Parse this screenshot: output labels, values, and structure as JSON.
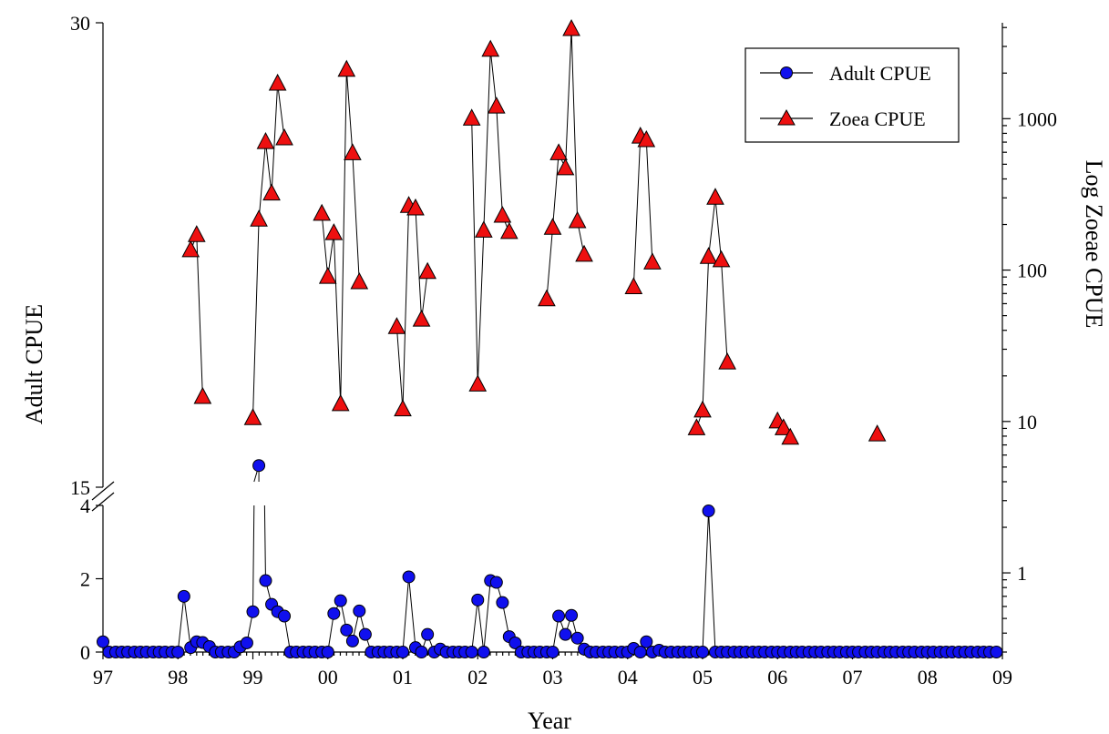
{
  "chart_data": {
    "type": "scatter",
    "xlabel": "Year",
    "ylabel_left": "Adult CPUE",
    "ylabel_right": "Log Zoeae CPUE",
    "x_ticks": [
      "97",
      "98",
      "99",
      "00",
      "01",
      "02",
      "03",
      "04",
      "05",
      "06",
      "07",
      "08",
      "09"
    ],
    "x_range": [
      1997,
      2009
    ],
    "y_left_lower_ticks": [
      "0",
      "2",
      "4"
    ],
    "y_left_upper_ticks": [
      "15",
      "30"
    ],
    "y_left_lower_range": [
      0,
      4
    ],
    "y_left_upper_range": [
      15,
      30
    ],
    "y_right_ticks": [
      "1",
      "10",
      "100",
      "1000"
    ],
    "y_right_range_log": [
      0.3,
      4300
    ],
    "grid": false,
    "legend_position": "top-right",
    "series": [
      {
        "name": "Adult CPUE",
        "marker": "circle",
        "color": "#1010ee",
        "axis": "left",
        "points": [
          [
            1997.0,
            0.28
          ],
          [
            1997.08,
            0
          ],
          [
            1997.17,
            0
          ],
          [
            1997.25,
            0
          ],
          [
            1997.33,
            0
          ],
          [
            1997.42,
            0
          ],
          [
            1997.5,
            0
          ],
          [
            1997.58,
            0
          ],
          [
            1997.67,
            0
          ],
          [
            1997.75,
            0
          ],
          [
            1997.83,
            0
          ],
          [
            1997.92,
            0
          ],
          [
            1998.0,
            0
          ],
          [
            1998.08,
            1.52
          ],
          [
            1998.17,
            0.12
          ],
          [
            1998.25,
            0.28
          ],
          [
            1998.33,
            0.26
          ],
          [
            1998.42,
            0.15
          ],
          [
            1998.5,
            0
          ],
          [
            1998.58,
            0
          ],
          [
            1998.67,
            0
          ],
          [
            1998.75,
            0
          ],
          [
            1998.83,
            0.14
          ],
          [
            1998.92,
            0.25
          ],
          [
            1999.0,
            1.1
          ],
          [
            1999.08,
            15.7
          ],
          [
            1999.17,
            1.95
          ],
          [
            1999.25,
            1.3
          ],
          [
            1999.33,
            1.1
          ],
          [
            1999.42,
            0.98
          ],
          [
            1999.5,
            0
          ],
          [
            1999.58,
            0
          ],
          [
            1999.67,
            0
          ],
          [
            1999.75,
            0
          ],
          [
            1999.83,
            0
          ],
          [
            1999.92,
            0
          ],
          [
            2000.0,
            0
          ],
          [
            2000.08,
            1.05
          ],
          [
            2000.17,
            1.4
          ],
          [
            2000.25,
            0.6
          ],
          [
            2000.33,
            0.3
          ],
          [
            2000.42,
            1.12
          ],
          [
            2000.5,
            0.48
          ],
          [
            2000.58,
            0
          ],
          [
            2000.67,
            0
          ],
          [
            2000.75,
            0
          ],
          [
            2000.83,
            0
          ],
          [
            2000.92,
            0
          ],
          [
            2001.0,
            0
          ],
          [
            2001.08,
            2.05
          ],
          [
            2001.17,
            0.12
          ],
          [
            2001.25,
            0
          ],
          [
            2001.33,
            0.48
          ],
          [
            2001.42,
            0
          ],
          [
            2001.5,
            0.08
          ],
          [
            2001.58,
            0
          ],
          [
            2001.67,
            0
          ],
          [
            2001.75,
            0
          ],
          [
            2001.83,
            0
          ],
          [
            2001.92,
            0
          ],
          [
            2002.0,
            1.42
          ],
          [
            2002.08,
            0
          ],
          [
            2002.17,
            1.95
          ],
          [
            2002.25,
            1.9
          ],
          [
            2002.33,
            1.35
          ],
          [
            2002.42,
            0.42
          ],
          [
            2002.5,
            0.25
          ],
          [
            2002.58,
            0
          ],
          [
            2002.67,
            0
          ],
          [
            2002.75,
            0
          ],
          [
            2002.83,
            0
          ],
          [
            2002.92,
            0
          ],
          [
            2003.0,
            0
          ],
          [
            2003.08,
            0.98
          ],
          [
            2003.17,
            0.48
          ],
          [
            2003.25,
            1.0
          ],
          [
            2003.33,
            0.38
          ],
          [
            2003.42,
            0.08
          ],
          [
            2003.5,
            0
          ],
          [
            2003.58,
            0
          ],
          [
            2003.67,
            0
          ],
          [
            2003.75,
            0
          ],
          [
            2003.83,
            0
          ],
          [
            2003.92,
            0
          ],
          [
            2004.0,
            0
          ],
          [
            2004.08,
            0.1
          ],
          [
            2004.17,
            0
          ],
          [
            2004.25,
            0.28
          ],
          [
            2004.33,
            0
          ],
          [
            2004.42,
            0.05
          ],
          [
            2004.5,
            0
          ],
          [
            2004.58,
            0
          ],
          [
            2004.67,
            0
          ],
          [
            2004.75,
            0
          ],
          [
            2004.83,
            0
          ],
          [
            2004.92,
            0
          ],
          [
            2005.0,
            0
          ],
          [
            2005.08,
            3.85
          ],
          [
            2005.17,
            0
          ],
          [
            2005.25,
            0
          ],
          [
            2005.33,
            0
          ],
          [
            2005.42,
            0
          ],
          [
            2005.5,
            0
          ],
          [
            2005.58,
            0
          ],
          [
            2005.67,
            0
          ],
          [
            2005.75,
            0
          ],
          [
            2005.83,
            0
          ],
          [
            2005.92,
            0
          ],
          [
            2006.0,
            0
          ],
          [
            2006.08,
            0
          ],
          [
            2006.17,
            0
          ],
          [
            2006.25,
            0
          ],
          [
            2006.33,
            0
          ],
          [
            2006.42,
            0
          ],
          [
            2006.5,
            0
          ],
          [
            2006.58,
            0
          ],
          [
            2006.67,
            0
          ],
          [
            2006.75,
            0
          ],
          [
            2006.83,
            0
          ],
          [
            2006.92,
            0
          ],
          [
            2007.0,
            0
          ],
          [
            2007.08,
            0
          ],
          [
            2007.17,
            0
          ],
          [
            2007.25,
            0
          ],
          [
            2007.33,
            0
          ],
          [
            2007.42,
            0
          ],
          [
            2007.5,
            0
          ],
          [
            2007.58,
            0
          ],
          [
            2007.67,
            0
          ],
          [
            2007.75,
            0
          ],
          [
            2007.83,
            0
          ],
          [
            2007.92,
            0
          ],
          [
            2008.0,
            0
          ],
          [
            2008.08,
            0
          ],
          [
            2008.17,
            0
          ],
          [
            2008.25,
            0
          ],
          [
            2008.33,
            0
          ],
          [
            2008.42,
            0
          ],
          [
            2008.5,
            0
          ],
          [
            2008.58,
            0
          ],
          [
            2008.67,
            0
          ],
          [
            2008.75,
            0
          ],
          [
            2008.83,
            0
          ],
          [
            2008.92,
            0
          ]
        ]
      },
      {
        "name": "Zoea CPUE",
        "marker": "triangle",
        "color": "#ee1010",
        "axis": "right",
        "segments": [
          [
            [
              1998.17,
              135
            ],
            [
              1998.25,
              170
            ],
            [
              1998.33,
              14.5
            ]
          ],
          [
            [
              1999.0,
              10.5
            ],
            [
              1999.08,
              215
            ],
            [
              1999.17,
              700
            ],
            [
              1999.25,
              320
            ],
            [
              1999.33,
              1700
            ],
            [
              1999.42,
              740
            ]
          ],
          [
            [
              1999.92,
              235
            ],
            [
              2000.0,
              90
            ],
            [
              2000.08,
              175
            ],
            [
              2000.17,
              13
            ],
            [
              2000.25,
              2100
            ],
            [
              2000.33,
              590
            ],
            [
              2000.42,
              83
            ]
          ],
          [
            [
              2000.92,
              42
            ],
            [
              2001.0,
              12
            ],
            [
              2001.08,
              265
            ],
            [
              2001.17,
              255
            ],
            [
              2001.25,
              47
            ],
            [
              2001.33,
              97
            ]
          ],
          [
            [
              2001.92,
              1000
            ],
            [
              2002.0,
              17.5
            ],
            [
              2002.08,
              182
            ],
            [
              2002.17,
              2850
            ],
            [
              2002.25,
              1200
            ],
            [
              2002.33,
              228
            ],
            [
              2002.42,
              178
            ]
          ],
          [
            [
              2002.92,
              64
            ],
            [
              2003.0,
              190
            ],
            [
              2003.08,
              590
            ],
            [
              2003.17,
              470
            ],
            [
              2003.25,
              3900
            ],
            [
              2003.33,
              210
            ],
            [
              2003.42,
              126
            ]
          ],
          [
            [
              2004.08,
              77
            ],
            [
              2004.17,
              760
            ],
            [
              2004.25,
              720
            ],
            [
              2004.33,
              112
            ]
          ],
          [
            [
              2004.92,
              9
            ],
            [
              2005.0,
              11.8
            ],
            [
              2005.08,
              122
            ],
            [
              2005.17,
              300
            ],
            [
              2005.25,
              116
            ],
            [
              2005.33,
              24.5
            ]
          ],
          [
            [
              2006.0,
              10
            ],
            [
              2006.08,
              9
            ],
            [
              2006.17,
              7.8
            ]
          ],
          [
            [
              2007.33,
              8.2
            ]
          ]
        ]
      }
    ]
  }
}
